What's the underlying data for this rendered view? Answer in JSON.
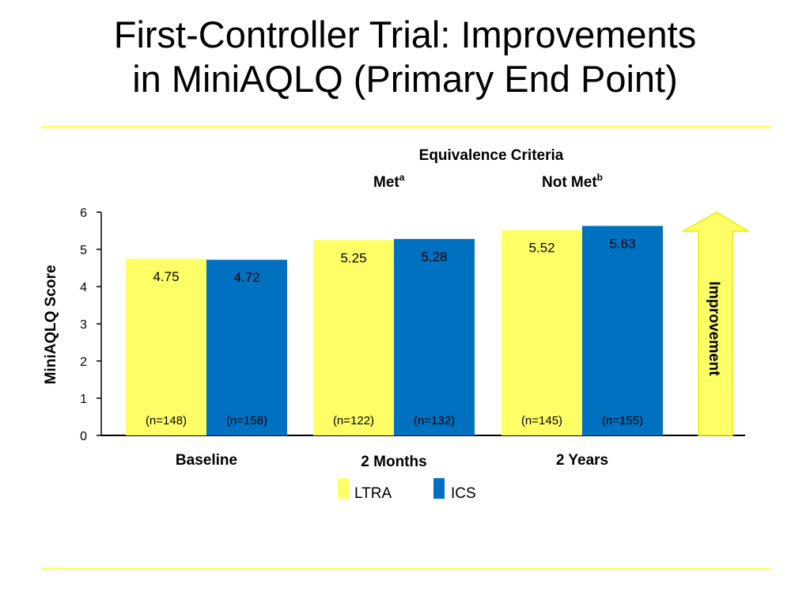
{
  "title": {
    "line1": "First-Controller Trial: Improvements",
    "line2": "in MiniAQLQ (Primary End Point)"
  },
  "colors": {
    "rule": "#ffff66",
    "ltra": "#ffff66",
    "ics": "#0070c0",
    "arrow_fill": "#ffff66",
    "arrow_stroke": "#f2e900"
  },
  "chart_data": {
    "type": "bar",
    "header": "Equivalence Criteria",
    "criteria": [
      {
        "label": "Met",
        "superscript": "a"
      },
      {
        "label": "Not Met",
        "superscript": "b"
      }
    ],
    "ylabel": "MiniAQLQ Score",
    "xlabel": "",
    "ylim": [
      0,
      6
    ],
    "yticks": [
      "0",
      "1",
      "2",
      "3",
      "4",
      "5",
      "6"
    ],
    "grid": false,
    "legend_position": "bottom-center",
    "categories": [
      "Baseline",
      "2 Months",
      "2 Years"
    ],
    "series": [
      {
        "name": "LTRA",
        "color": "#ffff66",
        "values": [
          4.75,
          5.25,
          5.52
        ],
        "labels": [
          "4.75",
          "5.25",
          "5.52"
        ],
        "n_labels": [
          "(n=148)",
          "(n=122)",
          "(n=145)"
        ]
      },
      {
        "name": "ICS",
        "color": "#0070c0",
        "values": [
          4.72,
          5.28,
          5.63
        ],
        "labels": [
          "4.72",
          "5.28",
          "5.63"
        ],
        "n_labels": [
          "(n=158)",
          "(n=132)",
          "(n=155)"
        ]
      }
    ],
    "annotation": "Improvement"
  }
}
